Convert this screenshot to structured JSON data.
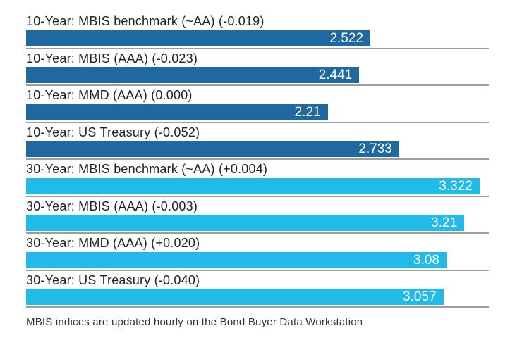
{
  "chart_data": {
    "type": "bar",
    "orientation": "horizontal",
    "xlim": [
      0,
      3.39
    ],
    "grid": false,
    "legend": false,
    "colors": {
      "ten_year": "#2069A0",
      "thirty_year": "#22BBE9",
      "separator": "#9e9e9e",
      "value_text": "#ffffff",
      "label_text": "#222222"
    },
    "rows": [
      {
        "label": "10-Year: MBIS benchmark (~AA) (-0.019)",
        "value": 2.522,
        "display": "2.522",
        "group": "ten_year"
      },
      {
        "label": "10-Year: MBIS (AAA) (-0.023)",
        "value": 2.441,
        "display": "2.441",
        "group": "ten_year"
      },
      {
        "label": "10-Year: MMD (AAA) (0.000)",
        "value": 2.21,
        "display": "2.21",
        "group": "ten_year"
      },
      {
        "label": "10-Year: US Treasury (-0.052)",
        "value": 2.733,
        "display": "2.733",
        "group": "ten_year"
      },
      {
        "label": "30-Year: MBIS benchmark (~AA) (+0.004)",
        "value": 3.322,
        "display": "3.322",
        "group": "thirty_year"
      },
      {
        "label": "30-Year: MBIS (AAA) (-0.003)",
        "value": 3.21,
        "display": "3.21",
        "group": "thirty_year"
      },
      {
        "label": "30-Year: MMD (AAA) (+0.020)",
        "value": 3.08,
        "display": "3.08",
        "group": "thirty_year"
      },
      {
        "label": "30-Year: US Treasury (-0.040)",
        "value": 3.057,
        "display": "3.057",
        "group": "thirty_year"
      }
    ],
    "footnote": "MBIS indices are updated hourly on the Bond Buyer Data Workstation"
  }
}
